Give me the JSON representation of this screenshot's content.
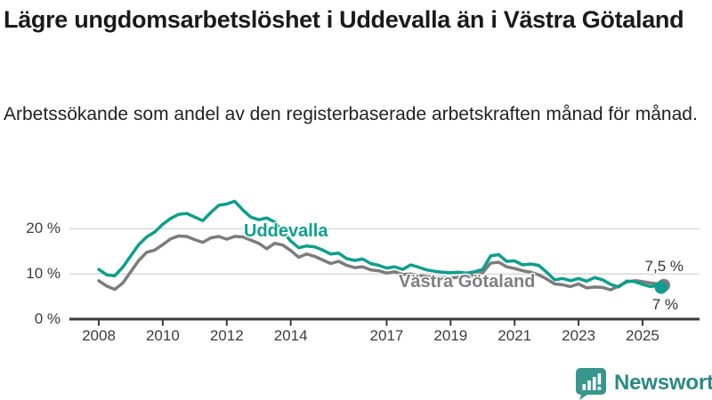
{
  "header": {
    "title": "Lägre ungdomsarbetslöshet i Uddevalla än i Västra Götaland",
    "subtitle": "Arbetssökande som andel av den registerbaserade arbetskraften månad för månad."
  },
  "footer": {
    "brand": "Newsworthy"
  },
  "colors": {
    "uddevalla": "#0d9e8e",
    "vastra_gotaland": "#7c7c7c",
    "axis": "#3b3b3b",
    "grid": "#d9d9d9",
    "brand_teal": "#37968e"
  },
  "chart_data": {
    "type": "line",
    "title": "Lägre ungdomsarbetslöshet i Uddevalla än i Västra Götaland",
    "subtitle": "Arbetssökande som andel av den registerbaserade arbetskraften månad för månad.",
    "unit": "%",
    "ylim": [
      0,
      27.5
    ],
    "grid": "horizontal",
    "grid_values": [
      10,
      20
    ],
    "ytick_labels": [
      "0 %",
      "10 %",
      "20 %"
    ],
    "xtick_labels": [
      "2008",
      "2010",
      "2012",
      "2014",
      "2017",
      "2019",
      "2021",
      "2023",
      "2025"
    ],
    "x_years": [
      2008,
      2008.25,
      2008.5,
      2008.75,
      2009,
      2009.25,
      2009.5,
      2009.75,
      2010,
      2010.25,
      2010.5,
      2010.75,
      2011,
      2011.25,
      2011.5,
      2011.75,
      2012,
      2012.25,
      2012.5,
      2012.75,
      2013,
      2013.25,
      2013.5,
      2013.75,
      2014,
      2014.25,
      2014.5,
      2014.75,
      2015,
      2015.25,
      2015.5,
      2015.75,
      2016,
      2016.25,
      2016.5,
      2016.75,
      2017,
      2017.25,
      2017.5,
      2017.75,
      2018,
      2018.25,
      2018.5,
      2018.75,
      2019,
      2019.25,
      2019.5,
      2019.75,
      2020,
      2020.25,
      2020.5,
      2020.75,
      2021,
      2021.25,
      2021.5,
      2021.75,
      2022,
      2022.25,
      2022.5,
      2022.75,
      2023,
      2023.25,
      2023.5,
      2023.75,
      2024,
      2024.25,
      2024.5,
      2024.75,
      2025,
      2025.25,
      2025.5,
      2025.58
    ],
    "series": [
      {
        "name": "Uddevalla",
        "color": "#0d9e8e",
        "end_label": "7 %",
        "end_value": 7,
        "values": [
          11,
          9.8,
          9.6,
          11.5,
          14,
          16.5,
          18.2,
          19.3,
          21,
          22.3,
          23.2,
          23.4,
          22.6,
          21.8,
          23.6,
          25.2,
          25.5,
          26.1,
          24.2,
          22.6,
          22,
          22.4,
          21.5,
          19.5,
          17.3,
          15.8,
          16.2,
          16,
          15.3,
          14.4,
          14.6,
          13.4,
          13,
          13.3,
          12.3,
          11.9,
          11.3,
          11.6,
          11,
          12,
          11.5,
          10.9,
          10.6,
          10.4,
          10.3,
          10.4,
          10.2,
          10.5,
          11,
          14,
          14.3,
          12.8,
          12.9,
          12,
          12.2,
          11.9,
          10.4,
          8.7,
          9,
          8.5,
          9,
          8.4,
          9.2,
          8.7,
          7.7,
          7.1,
          8.4,
          8.3,
          7.7,
          7.2,
          7.5,
          7
        ]
      },
      {
        "name": "Västra Götaland",
        "color": "#7c7c7c",
        "end_label": "7,5 %",
        "end_value": 7.5,
        "values": [
          8.5,
          7.3,
          6.6,
          8,
          10.5,
          13,
          14.8,
          15.3,
          16.5,
          17.8,
          18.4,
          18.3,
          17.6,
          17,
          18,
          18.3,
          17.7,
          18.3,
          18.2,
          17.5,
          16.8,
          15.6,
          16.8,
          16.4,
          15.2,
          13.7,
          14.4,
          13.9,
          13.1,
          12.3,
          12.8,
          11.9,
          11.4,
          11.6,
          10.9,
          10.7,
          10.2,
          10.5,
          9.9,
          10,
          9.7,
          9.4,
          9.2,
          9.2,
          9.1,
          9.3,
          9.4,
          9.8,
          10.3,
          12.4,
          12.6,
          11.6,
          11.2,
          10.7,
          10.4,
          9.8,
          8.9,
          7.8,
          7.6,
          7.2,
          7.8,
          6.9,
          7.1,
          7,
          6.5,
          7.3,
          8.2,
          8.5,
          8.3,
          8,
          7.8,
          7.5
        ]
      }
    ]
  }
}
